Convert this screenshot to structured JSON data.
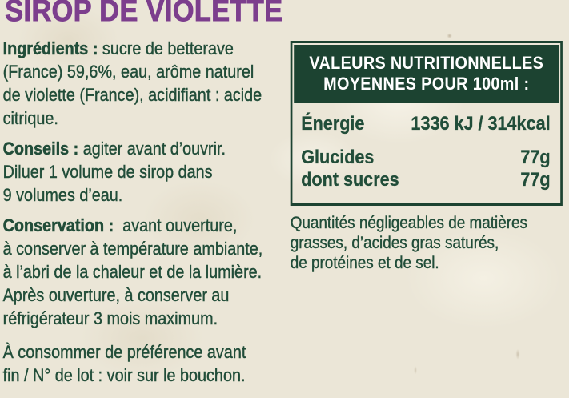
{
  "title": "SIROP DE VIOLETTE",
  "colors": {
    "title_purple": "#7c3e8d",
    "text_green": "#214d39",
    "table_green": "#1c4331",
    "paper": "#ebe6d7",
    "header_text": "#ffffff"
  },
  "sections": [
    {
      "label": "Ingrédients :",
      "lines": [
        "sucre de betterave",
        "(France) 59,6%, eau, arôme naturel",
        "de violette (France), acidifiant : acide",
        "citrique."
      ]
    },
    {
      "label": "Conseils :",
      "lines": [
        "agiter avant d’ouvrir.",
        "Diluer 1 volume de sirop dans",
        "9 volumes d’eau."
      ]
    },
    {
      "label": "Conservation :",
      "lines": [
        " avant ouverture,",
        "à conserver à température ambiante,",
        "à l’abri de la chaleur et de la lumière.",
        "Après ouverture, à conserver au",
        "réfrigérateur 3 mois maximum."
      ]
    },
    {
      "label": "",
      "lines": [
        "À consommer de préférence avant",
        "fin / N° de lot : voir sur le bouchon."
      ]
    }
  ],
  "nutrition_table": {
    "header_lines": [
      "VALEURS NUTRITIONNELLES",
      "MOYENNES POUR 100ml :"
    ],
    "rows": [
      {
        "label": "Énergie",
        "value": "1336 kJ / 314kcal"
      },
      {
        "label": "Glucides",
        "value": "77g"
      },
      {
        "label": "dont sucres",
        "value": "77g"
      }
    ]
  },
  "note_lines": [
    "Quantités négligeables de matières",
    "grasses, d’acides gras saturés,",
    "de protéines et de sel."
  ]
}
